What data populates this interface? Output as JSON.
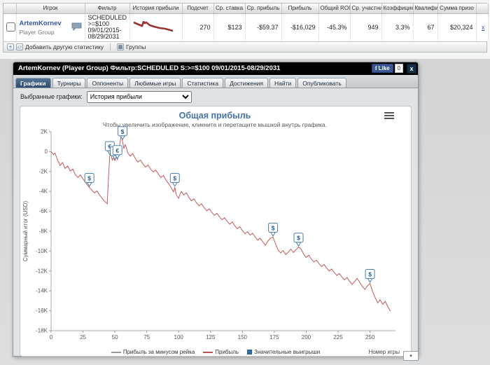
{
  "table": {
    "headers": [
      "Игрок",
      "Фильтр",
      "История прибыли",
      "Подсчет",
      "Ср. ставка",
      "Ср. прибыль",
      "Прибыль",
      "Общий ROI",
      "Ср. участни",
      "Коэффицие",
      "Квалифи",
      "Сумма призо"
    ],
    "row": {
      "player": "ArtemKornev",
      "player_type": "Player Group",
      "filter_line1": "SCHEDULED",
      "filter_line2": ">=$100",
      "filter_line3": "09/01/2015-",
      "filter_line4": "08/29/2031",
      "count": "270",
      "av_stake": "$123",
      "av_profit": "-$59.37",
      "profit": "-$16,029",
      "total_roi": "-45.3%",
      "av_entrants": "949",
      "ability": "3.3%",
      "qualified": "67",
      "prize_total": "$20,324",
      "remove": "x"
    },
    "footer": {
      "add_stat": "Добавить другую статистику",
      "groups": "Группы"
    }
  },
  "panel": {
    "title": "ArtemKornev (Player Group) Фильтр:SCHEDULED S:>=$100 09/01/2015-08/29/2031",
    "fb_like": "Like",
    "fb_count": "0",
    "close": "x",
    "tabs": [
      {
        "label": "Графики"
      },
      {
        "label": "Турниры"
      },
      {
        "label": "Оппоненты"
      },
      {
        "label": "Любимые игры"
      },
      {
        "label": "Статистика"
      },
      {
        "label": "Достижения"
      },
      {
        "label": "Найти"
      },
      {
        "label": "Опубликовать"
      }
    ],
    "graph_select_label": "Выбранные графики:",
    "graph_select_value": "История прибыли",
    "corner_arrow": "▾"
  },
  "chart_data": {
    "type": "line",
    "title": "Общая прибыль",
    "subtitle": "Чтобы увеличить изображение, кликните и перетащите мышкой внутрь графика.",
    "xlabel": "Номер игры",
    "ylabel": "Суммарный итог (USD)",
    "xlim": [
      0,
      270
    ],
    "ylim": [
      -18000,
      2000
    ],
    "x_ticks": [
      0,
      25,
      50,
      75,
      100,
      125,
      150,
      175,
      200,
      225,
      250
    ],
    "y_ticks": [
      2000,
      0,
      -2000,
      -4000,
      -6000,
      -8000,
      -10000,
      -12000,
      -14000,
      -16000,
      -18000
    ],
    "y_tick_labels": [
      "2K",
      "0",
      "-2K",
      "-4K",
      "-6K",
      "-8K",
      "-10K",
      "-12K",
      "-14K",
      "-16K",
      "-18K"
    ],
    "grid": false,
    "legend_position": "bottom",
    "legend": [
      {
        "label": "Прибыль за минусом рейка",
        "color": "#999999",
        "type": "line"
      },
      {
        "label": "Прибыль",
        "color": "#bb5555",
        "type": "line"
      },
      {
        "label": "Значительные выигрыши",
        "color": "#2f6da8",
        "type": "marker"
      }
    ],
    "series": [
      {
        "name": "Прибыль",
        "color": "#c05a5a",
        "points": [
          [
            0,
            0
          ],
          [
            2,
            -300
          ],
          [
            3,
            -150
          ],
          [
            5,
            -800
          ],
          [
            7,
            -1400
          ],
          [
            9,
            -1100
          ],
          [
            11,
            -1700
          ],
          [
            13,
            -1450
          ],
          [
            15,
            -1950
          ],
          [
            17,
            -1750
          ],
          [
            19,
            -2300
          ],
          [
            21,
            -2600
          ],
          [
            23,
            -2350
          ],
          [
            25,
            -2750
          ],
          [
            27,
            -3100
          ],
          [
            29,
            -3450
          ],
          [
            30,
            -3600
          ],
          [
            32,
            -3900
          ],
          [
            34,
            -4150
          ],
          [
            36,
            -3950
          ],
          [
            38,
            -4350
          ],
          [
            40,
            -4700
          ],
          [
            42,
            -5000
          ],
          [
            44,
            -5250
          ],
          [
            45,
            -2600
          ],
          [
            46,
            -400
          ],
          [
            47,
            -300
          ],
          [
            48,
            -850
          ],
          [
            49,
            -600
          ],
          [
            50,
            -900
          ],
          [
            51,
            -500
          ],
          [
            52,
            -800
          ],
          [
            53,
            100
          ],
          [
            54,
            900
          ],
          [
            55,
            1600
          ],
          [
            56,
            1100
          ],
          [
            57,
            300
          ],
          [
            58,
            700
          ],
          [
            59,
            400
          ],
          [
            60,
            -100
          ],
          [
            62,
            -450
          ],
          [
            64,
            -200
          ],
          [
            66,
            -700
          ],
          [
            68,
            -1050
          ],
          [
            70,
            -850
          ],
          [
            72,
            -1250
          ],
          [
            74,
            -1550
          ],
          [
            76,
            -1350
          ],
          [
            78,
            -1750
          ],
          [
            80,
            -2050
          ],
          [
            82,
            -1850
          ],
          [
            84,
            -2250
          ],
          [
            86,
            -2600
          ],
          [
            88,
            -2400
          ],
          [
            90,
            -2850
          ],
          [
            92,
            -3200
          ],
          [
            94,
            -3600
          ],
          [
            96,
            -4050
          ],
          [
            97,
            -3600
          ],
          [
            98,
            -4300
          ],
          [
            100,
            -4700
          ],
          [
            101,
            -4300
          ],
          [
            102,
            -4000
          ],
          [
            104,
            -4350
          ],
          [
            106,
            -4150
          ],
          [
            108,
            -4600
          ],
          [
            110,
            -4950
          ],
          [
            112,
            -4750
          ],
          [
            114,
            -5150
          ],
          [
            116,
            -5450
          ],
          [
            118,
            -5250
          ],
          [
            120,
            -5650
          ],
          [
            122,
            -5950
          ],
          [
            124,
            -5750
          ],
          [
            126,
            -6100
          ],
          [
            128,
            -6400
          ],
          [
            130,
            -6200
          ],
          [
            132,
            -6550
          ],
          [
            134,
            -6850
          ],
          [
            136,
            -6650
          ],
          [
            138,
            -7000
          ],
          [
            140,
            -7300
          ],
          [
            142,
            -7050
          ],
          [
            144,
            -7450
          ],
          [
            146,
            -7750
          ],
          [
            148,
            -7550
          ],
          [
            150,
            -7950
          ],
          [
            152,
            -8250
          ],
          [
            154,
            -8050
          ],
          [
            156,
            -8400
          ],
          [
            158,
            -8200
          ],
          [
            160,
            -8600
          ],
          [
            162,
            -8900
          ],
          [
            164,
            -8700
          ],
          [
            166,
            -9100
          ],
          [
            168,
            -9400
          ],
          [
            170,
            -9000
          ],
          [
            172,
            -8700
          ],
          [
            174,
            -8600
          ],
          [
            176,
            -9300
          ],
          [
            178,
            -9900
          ],
          [
            180,
            -10200
          ],
          [
            182,
            -9950
          ],
          [
            184,
            -10350
          ],
          [
            186,
            -10100
          ],
          [
            188,
            -9800
          ],
          [
            190,
            -10150
          ],
          [
            192,
            -9850
          ],
          [
            194,
            -9600
          ],
          [
            196,
            -9800
          ],
          [
            198,
            -10300
          ],
          [
            200,
            -10650
          ],
          [
            202,
            -10400
          ],
          [
            204,
            -10800
          ],
          [
            206,
            -11100
          ],
          [
            208,
            -10900
          ],
          [
            210,
            -11250
          ],
          [
            212,
            -11550
          ],
          [
            214,
            -11350
          ],
          [
            216,
            -11700
          ],
          [
            218,
            -12000
          ],
          [
            220,
            -11800
          ],
          [
            222,
            -12150
          ],
          [
            224,
            -12450
          ],
          [
            226,
            -12250
          ],
          [
            228,
            -12600
          ],
          [
            230,
            -12900
          ],
          [
            232,
            -12650
          ],
          [
            234,
            -13050
          ],
          [
            236,
            -13350
          ],
          [
            238,
            -13050
          ],
          [
            240,
            -12750
          ],
          [
            242,
            -13150
          ],
          [
            244,
            -13550
          ],
          [
            246,
            -13850
          ],
          [
            248,
            -13500
          ],
          [
            250,
            -13250
          ],
          [
            252,
            -14050
          ],
          [
            254,
            -14650
          ],
          [
            256,
            -15200
          ],
          [
            258,
            -14900
          ],
          [
            260,
            -15350
          ],
          [
            262,
            -15050
          ],
          [
            264,
            -15600
          ],
          [
            266,
            -16029
          ]
        ]
      }
    ],
    "markers": [
      {
        "x": 30,
        "y": -3600,
        "symbol": "$"
      },
      {
        "x": 46,
        "y": -400,
        "symbol": "€"
      },
      {
        "x": 50,
        "y": -900,
        "symbol": "$"
      },
      {
        "x": 52,
        "y": -800,
        "symbol": "€"
      },
      {
        "x": 56,
        "y": 1100,
        "symbol": "$"
      },
      {
        "x": 97,
        "y": -3600,
        "symbol": "$"
      },
      {
        "x": 174,
        "y": -8600,
        "symbol": "$"
      },
      {
        "x": 194,
        "y": -9600,
        "symbol": "$"
      },
      {
        "x": 250,
        "y": -13250,
        "symbol": "$"
      }
    ]
  }
}
